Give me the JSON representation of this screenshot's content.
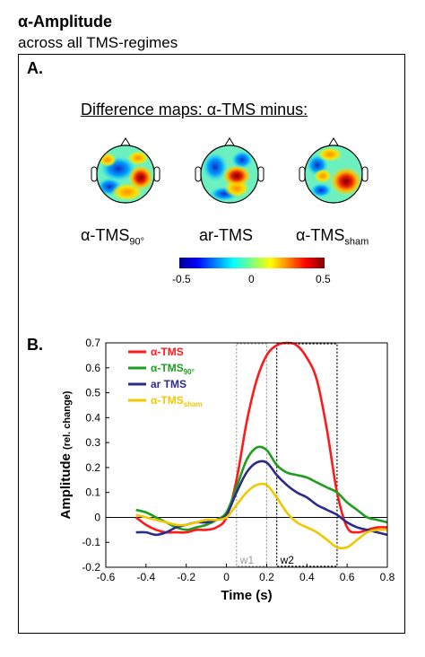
{
  "header": {
    "title": "α-Amplitude",
    "subtitle": "across all TMS-regimes"
  },
  "panels": {
    "a_label": "A.",
    "b_label": "B."
  },
  "maps": {
    "heading": "Difference maps: α-TMS minus:",
    "items": [
      {
        "base": "α-TMS",
        "sub": "90°"
      },
      {
        "base": "ar-TMS",
        "sub": ""
      },
      {
        "base": "α-TMS",
        "sub": "sham"
      }
    ],
    "colorbar": {
      "min_label": "-0.5",
      "mid_label": "0",
      "max_label": "0.5",
      "range": [
        -0.5,
        0.5
      ]
    }
  },
  "chart_data": {
    "type": "line",
    "xlabel": "Time (s)",
    "ylabel_main": "Amplitude",
    "ylabel_unit": "(rel. change)",
    "xlim": [
      -0.6,
      0.8
    ],
    "ylim": [
      -0.2,
      0.7
    ],
    "xticks": [
      "-0.6",
      "-0.4",
      "-0.2",
      "0",
      "0.2",
      "0.4",
      "0.6",
      "0.8"
    ],
    "yticks": [
      "-0.2",
      "-0.1",
      "0",
      "0.1",
      "0.2",
      "0.3",
      "0.4",
      "0.5",
      "0.6",
      "0.7"
    ],
    "legend_position": "top-left",
    "windows": [
      {
        "label": "w1",
        "x0": 0.05,
        "x1": 0.2,
        "color": "#9a9a9a"
      },
      {
        "label": "w2",
        "x0": 0.25,
        "x1": 0.55,
        "color": "#000000"
      }
    ],
    "series": [
      {
        "base": "α-TMS",
        "sub": "",
        "color": "#ff1a1a",
        "x": [
          -0.45,
          -0.4,
          -0.35,
          -0.3,
          -0.25,
          -0.2,
          -0.15,
          -0.1,
          -0.05,
          0,
          0.05,
          0.1,
          0.15,
          0.2,
          0.25,
          0.3,
          0.35,
          0.4,
          0.45,
          0.5,
          0.55,
          0.6,
          0.65,
          0.7,
          0.75,
          0.8
        ],
        "y": [
          0.0,
          -0.03,
          -0.05,
          -0.06,
          -0.06,
          -0.06,
          -0.05,
          -0.05,
          -0.04,
          0.0,
          0.15,
          0.38,
          0.55,
          0.65,
          0.69,
          0.7,
          0.69,
          0.64,
          0.55,
          0.35,
          0.1,
          -0.04,
          -0.06,
          -0.05,
          -0.04,
          -0.04
        ]
      },
      {
        "base": "α-TMS",
        "sub": "90°",
        "color": "#1e9e1e",
        "x": [
          -0.45,
          -0.4,
          -0.35,
          -0.3,
          -0.25,
          -0.2,
          -0.15,
          -0.1,
          -0.05,
          0,
          0.05,
          0.1,
          0.15,
          0.2,
          0.25,
          0.3,
          0.35,
          0.4,
          0.45,
          0.5,
          0.55,
          0.6,
          0.65,
          0.7,
          0.75,
          0.8
        ],
        "y": [
          0.03,
          0.02,
          0.0,
          -0.02,
          -0.04,
          -0.05,
          -0.04,
          -0.03,
          -0.01,
          0.02,
          0.12,
          0.23,
          0.28,
          0.27,
          0.21,
          0.18,
          0.17,
          0.16,
          0.14,
          0.12,
          0.1,
          0.06,
          0.03,
          0.0,
          -0.01,
          -0.02
        ]
      },
      {
        "base": "ar TMS",
        "sub": "",
        "color": "#2b2b8a",
        "x": [
          -0.45,
          -0.4,
          -0.35,
          -0.3,
          -0.25,
          -0.2,
          -0.15,
          -0.1,
          -0.05,
          0,
          0.05,
          0.1,
          0.15,
          0.2,
          0.25,
          0.3,
          0.35,
          0.4,
          0.45,
          0.5,
          0.55,
          0.6,
          0.65,
          0.7,
          0.75,
          0.8
        ],
        "y": [
          -0.06,
          -0.06,
          -0.07,
          -0.06,
          -0.04,
          -0.03,
          -0.02,
          -0.02,
          -0.01,
          0.01,
          0.1,
          0.18,
          0.22,
          0.22,
          0.17,
          0.13,
          0.1,
          0.08,
          0.05,
          0.03,
          0.01,
          -0.02,
          -0.04,
          -0.05,
          -0.06,
          -0.07
        ]
      },
      {
        "base": "α-TMS",
        "sub": "sham",
        "color": "#f0c800",
        "x": [
          -0.45,
          -0.4,
          -0.35,
          -0.3,
          -0.25,
          -0.2,
          -0.15,
          -0.1,
          -0.05,
          0,
          0.05,
          0.1,
          0.15,
          0.2,
          0.25,
          0.3,
          0.35,
          0.4,
          0.45,
          0.5,
          0.55,
          0.6,
          0.65,
          0.7,
          0.75,
          0.8
        ],
        "y": [
          0.01,
          0.0,
          -0.01,
          -0.02,
          -0.03,
          -0.03,
          -0.02,
          -0.01,
          -0.01,
          0.0,
          0.05,
          0.1,
          0.13,
          0.13,
          0.08,
          0.02,
          -0.02,
          -0.04,
          -0.06,
          -0.09,
          -0.12,
          -0.12,
          -0.09,
          -0.06,
          -0.05,
          -0.05
        ]
      }
    ]
  }
}
